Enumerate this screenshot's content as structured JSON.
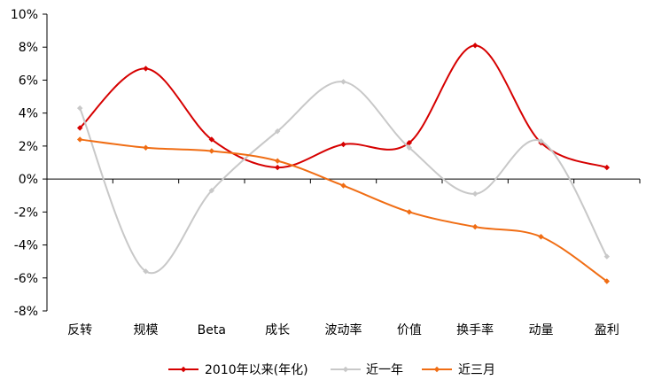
{
  "chart_data": {
    "type": "line",
    "smooth": true,
    "categories": [
      "反转",
      "规模",
      "Beta",
      "成长",
      "波动率",
      "价值",
      "换手率",
      "动量",
      "盈利"
    ],
    "ylim": [
      -8,
      10
    ],
    "ytick_step": 2,
    "y_tick_format": "percent",
    "y_ticks": [
      "10%",
      "8%",
      "6%",
      "4%",
      "2%",
      "0%",
      "-2%",
      "-4%",
      "-6%",
      "-8%"
    ],
    "grid": false,
    "legend_position": "bottom",
    "series": [
      {
        "name": "2010年以来(年化)",
        "color": "#d60000",
        "values": [
          3.1,
          6.7,
          2.4,
          0.7,
          2.1,
          2.2,
          8.1,
          2.2,
          0.7
        ]
      },
      {
        "name": "近一年",
        "color": "#c8c8c8",
        "values": [
          4.3,
          -5.6,
          -0.7,
          2.9,
          5.9,
          1.9,
          -0.9,
          2.3,
          -4.7
        ]
      },
      {
        "name": "近三月",
        "color": "#f06d14",
        "values": [
          2.4,
          1.9,
          1.7,
          1.1,
          -0.4,
          -2.0,
          -2.9,
          -3.5,
          -6.2
        ]
      }
    ]
  }
}
